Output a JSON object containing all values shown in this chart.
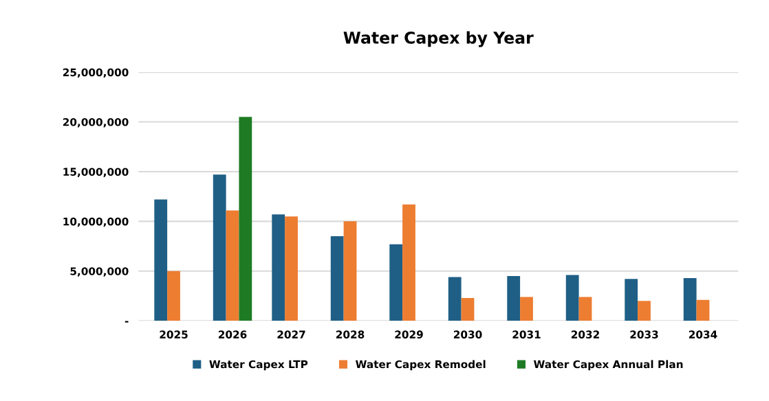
{
  "chart_data": {
    "type": "bar",
    "title": "Water Capex by Year",
    "categories": [
      "2025",
      "2026",
      "2027",
      "2028",
      "2029",
      "2030",
      "2031",
      "2032",
      "2033",
      "2034"
    ],
    "series": [
      {
        "name": "Water Capex LTP",
        "color": "#1f5f86",
        "values": [
          12200000,
          14700000,
          10700000,
          8500000,
          7700000,
          4400000,
          4500000,
          4600000,
          4200000,
          4300000
        ]
      },
      {
        "name": "Water Capex Remodel",
        "color": "#ed7d31",
        "values": [
          5000000,
          11100000,
          10500000,
          10000000,
          11700000,
          2300000,
          2400000,
          2400000,
          2000000,
          2100000
        ]
      },
      {
        "name": "Water Capex Annual Plan",
        "color": "#1e7b24",
        "values": [
          null,
          20500000,
          null,
          null,
          null,
          null,
          null,
          null,
          null,
          null
        ]
      }
    ],
    "ylim": [
      0,
      25000000
    ],
    "yticks": [
      {
        "value": 0,
        "label": "-"
      },
      {
        "value": 5000000,
        "label": "5,000,000"
      },
      {
        "value": 10000000,
        "label": "10,000,000"
      },
      {
        "value": 15000000,
        "label": "15,000,000"
      },
      {
        "value": 20000000,
        "label": "20,000,000"
      },
      {
        "value": 25000000,
        "label": "25,000,000"
      }
    ],
    "grid": "y",
    "legend": "bottom"
  }
}
